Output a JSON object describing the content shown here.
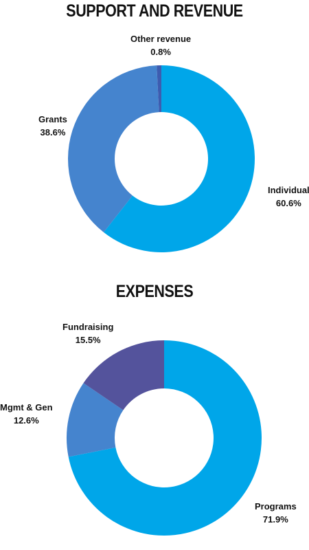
{
  "chart_data": [
    {
      "type": "pie",
      "title": "SUPPORT AND REVENUE",
      "slices": [
        {
          "label": "Individual",
          "value": 60.6,
          "display": "60.6%",
          "color": "#00A6E9"
        },
        {
          "label": "Grants",
          "value": 38.6,
          "display": "38.6%",
          "color": "#4584CE"
        },
        {
          "label": "Other revenue",
          "value": 0.8,
          "display": "0.8%",
          "color": "#3D5CB0"
        }
      ],
      "legend": "none",
      "donut": true
    },
    {
      "type": "pie",
      "title": "EXPENSES",
      "slices": [
        {
          "label": "Programs",
          "value": 71.9,
          "display": "71.9%",
          "color": "#00A6E9"
        },
        {
          "label": "Mgmt & Gen",
          "value": 12.6,
          "display": "12.6%",
          "color": "#4584CE"
        },
        {
          "label": "Fundraising",
          "value": 15.5,
          "display": "15.5%",
          "color": "#54539C"
        }
      ],
      "legend": "none",
      "donut": true
    }
  ]
}
